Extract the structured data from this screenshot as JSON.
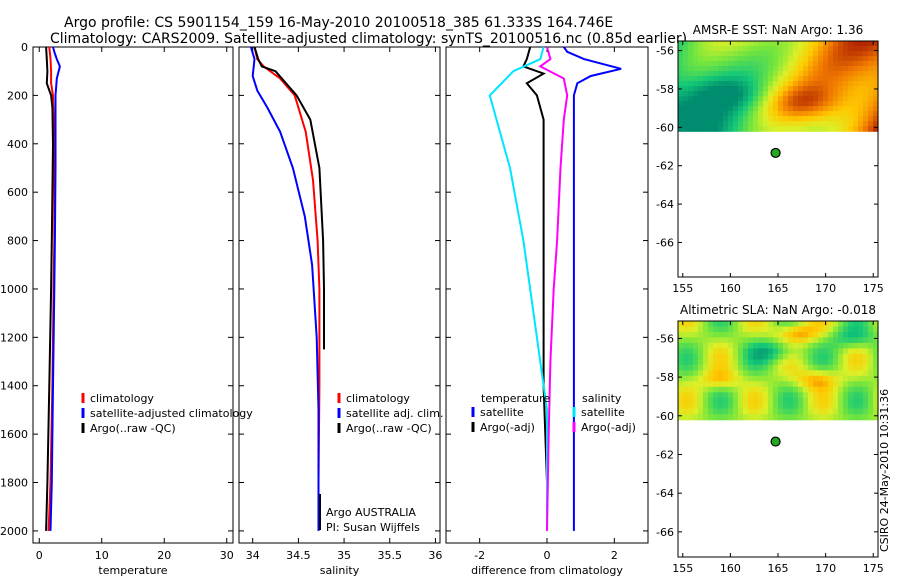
{
  "header": {
    "line1": "Argo profile: CS 5901154_159 16-May-2010 20100518_385 61.333S 164.746E",
    "line2": "Climatology: CARS2009. Satellite-adjusted climatology: synTS_20100516.nc (0.85d earlier)"
  },
  "side_label": "CSIRO 24-May-2010 10:31:36",
  "colors": {
    "climatology": "#ff0000",
    "satellite": "#0000ff",
    "argo": "#000000",
    "salinity_sat": "#00e5ff",
    "salinity_argo": "#ff00ff"
  },
  "chart_data": [
    {
      "type": "line",
      "xlabel": "temperature",
      "xlim": [
        -1,
        31
      ],
      "xticks": [
        0,
        10,
        20,
        30
      ],
      "ylim": [
        0,
        2050
      ],
      "yticks": [
        0,
        200,
        400,
        600,
        800,
        1000,
        1200,
        1400,
        1600,
        1800,
        2000
      ],
      "y_inverted": true,
      "legend": {
        "position": "lower-right",
        "entries": [
          "climatology",
          "satellite-adjusted climatology",
          "Argo(..raw -QC)"
        ]
      },
      "series": [
        {
          "name": "climatology",
          "color": "#ff0000",
          "points": [
            [
              1.6,
              0
            ],
            [
              1.8,
              50
            ],
            [
              1.9,
              100
            ],
            [
              1.9,
              150
            ],
            [
              2.2,
              200
            ],
            [
              2.3,
              300
            ],
            [
              2.4,
              500
            ],
            [
              2.4,
              800
            ],
            [
              2.3,
              1000
            ],
            [
              2.1,
              1400
            ],
            [
              1.8,
              1800
            ],
            [
              1.5,
              2000
            ]
          ]
        },
        {
          "name": "satellite-adjusted climatology",
          "color": "#0000ff",
          "points": [
            [
              2.2,
              0
            ],
            [
              2.4,
              20
            ],
            [
              2.8,
              50
            ],
            [
              3.3,
              80
            ],
            [
              2.8,
              130
            ],
            [
              2.6,
              200
            ],
            [
              2.6,
              300
            ],
            [
              2.6,
              500
            ],
            [
              2.5,
              800
            ],
            [
              2.4,
              1000
            ],
            [
              2.2,
              1400
            ],
            [
              2.0,
              1800
            ],
            [
              1.8,
              2000
            ]
          ]
        },
        {
          "name": "Argo(..raw -QC)",
          "color": "#000000",
          "points": [
            [
              1.1,
              0
            ],
            [
              1.2,
              50
            ],
            [
              1.3,
              100
            ],
            [
              1.2,
              150
            ],
            [
              1.9,
              200
            ],
            [
              2.1,
              250
            ],
            [
              2.2,
              400
            ],
            [
              2.1,
              600
            ],
            [
              2.0,
              800
            ],
            [
              1.9,
              1000
            ],
            [
              1.6,
              1400
            ],
            [
              1.3,
              1800
            ],
            [
              1.1,
              2000
            ]
          ]
        }
      ]
    },
    {
      "type": "line",
      "xlabel": "salinity",
      "xlim": [
        33.85,
        36.05
      ],
      "xticks": [
        34,
        34.5,
        35,
        35.5,
        36
      ],
      "ylim": [
        0,
        2050
      ],
      "yticks": [
        0,
        200,
        400,
        600,
        800,
        1000,
        1200,
        1400,
        1600,
        1800,
        2000
      ],
      "y_inverted": true,
      "legend": {
        "position": "lower-right",
        "entries": [
          "climatology",
          "satellite adj. clim.",
          "Argo(..raw -QC)"
        ]
      },
      "annotations": [
        "Argo AUSTRALIA",
        "PI: Susan Wijffels"
      ],
      "series": [
        {
          "name": "climatology",
          "color": "#ff0000",
          "points": [
            [
              34.02,
              0
            ],
            [
              34.05,
              50
            ],
            [
              34.12,
              80
            ],
            [
              34.3,
              130
            ],
            [
              34.46,
              200
            ],
            [
              34.58,
              350
            ],
            [
              34.66,
              550
            ],
            [
              34.71,
              800
            ],
            [
              34.73,
              1000
            ],
            [
              34.73,
              1400
            ],
            [
              34.72,
              1800
            ],
            [
              34.72,
              2000
            ]
          ]
        },
        {
          "name": "satellite adj. clim.",
          "color": "#0000ff",
          "points": [
            [
              33.98,
              0
            ],
            [
              34.02,
              50
            ],
            [
              34.0,
              120
            ],
            [
              34.05,
              180
            ],
            [
              34.16,
              250
            ],
            [
              34.3,
              350
            ],
            [
              34.44,
              500
            ],
            [
              34.57,
              700
            ],
            [
              34.65,
              900
            ],
            [
              34.7,
              1200
            ],
            [
              34.72,
              1500
            ],
            [
              34.72,
              1800
            ],
            [
              34.72,
              2000
            ]
          ]
        },
        {
          "name": "Argo(..raw -QC)",
          "color": "#000000",
          "points": [
            [
              34.02,
              0
            ],
            [
              34.06,
              50
            ],
            [
              34.1,
              80
            ],
            [
              34.25,
              100
            ],
            [
              34.48,
              200
            ],
            [
              34.63,
              300
            ],
            [
              34.73,
              500
            ],
            [
              34.77,
              800
            ],
            [
              34.78,
              1000
            ],
            [
              34.78,
              1250
            ]
          ]
        }
      ]
    },
    {
      "type": "line",
      "xlabel": "difference from climatology",
      "xlim": [
        -3,
        3
      ],
      "xticks": [
        -2,
        0,
        2
      ],
      "ylim": [
        0,
        2050
      ],
      "yticks": [
        0,
        200,
        400,
        600,
        800,
        1000,
        1200,
        1400,
        1600,
        1800,
        2000
      ],
      "y_inverted": true,
      "legend": {
        "position": "lower-right",
        "groups": [
          {
            "title": "temperature",
            "entries": [
              "satellite",
              "Argo(-adj)"
            ]
          },
          {
            "title": "salinity",
            "entries": [
              "satellite",
              "Argo(-adj)"
            ]
          }
        ]
      },
      "series": [
        {
          "name": "temperature satellite",
          "color": "#0000ff",
          "points": [
            [
              0.5,
              0
            ],
            [
              0.6,
              20
            ],
            [
              1.1,
              50
            ],
            [
              2.2,
              90
            ],
            [
              1.3,
              120
            ],
            [
              0.9,
              150
            ],
            [
              0.8,
              200
            ],
            [
              0.8,
              300
            ],
            [
              0.8,
              500
            ],
            [
              0.8,
              800
            ],
            [
              0.8,
              1000
            ],
            [
              0.8,
              1400
            ],
            [
              0.8,
              1800
            ],
            [
              0.8,
              2000
            ]
          ]
        },
        {
          "name": "temperature Argo(-adj)",
          "color": "#000000",
          "points": [
            [
              -0.5,
              0
            ],
            [
              -0.6,
              50
            ],
            [
              -0.7,
              80
            ],
            [
              -0.1,
              110
            ],
            [
              -0.6,
              150
            ],
            [
              -0.3,
              200
            ],
            [
              -0.1,
              300
            ],
            [
              -0.1,
              600
            ],
            [
              -0.1,
              1000
            ],
            [
              -0.1,
              1400
            ],
            [
              0.0,
              1800
            ],
            [
              0.0,
              2000
            ]
          ]
        },
        {
          "name": "salinity satellite",
          "color": "#00e5ff",
          "points": [
            [
              -0.1,
              0
            ],
            [
              -0.2,
              50
            ],
            [
              -1.0,
              100
            ],
            [
              -1.7,
              200
            ],
            [
              -1.5,
              300
            ],
            [
              -1.1,
              500
            ],
            [
              -0.7,
              800
            ],
            [
              -0.3,
              1200
            ],
            [
              0.0,
              1500
            ],
            [
              0.0,
              2000
            ]
          ]
        },
        {
          "name": "salinity Argo(-adj)",
          "color": "#ff00ff",
          "points": [
            [
              0.0,
              0
            ],
            [
              0.1,
              50
            ],
            [
              -0.2,
              80
            ],
            [
              0.5,
              130
            ],
            [
              0.6,
              200
            ],
            [
              0.5,
              300
            ],
            [
              0.4,
              500
            ],
            [
              0.3,
              800
            ],
            [
              0.2,
              1000
            ],
            [
              0.1,
              1300
            ],
            [
              0.05,
              1600
            ],
            [
              0.0,
              2000
            ]
          ]
        }
      ]
    },
    {
      "type": "heatmap",
      "title": "AMSR-E SST: NaN Argo: 1.36",
      "xlim": [
        154.5,
        175.5
      ],
      "xticks": [
        155,
        160,
        165,
        170,
        175
      ],
      "ylim": [
        -67.8,
        -55.5
      ],
      "yticks": [
        -56,
        -58,
        -60,
        -62,
        -64,
        -66
      ],
      "data_extent_lat": [
        -55.5,
        -60.2
      ],
      "argo_position": {
        "lon": 164.746,
        "lat": -61.333
      }
    },
    {
      "type": "heatmap",
      "title": "Altimetric SLA: NaN Argo: -0.018",
      "xlim": [
        154.5,
        175.5
      ],
      "xticks": [
        155,
        160,
        165,
        170,
        175
      ],
      "ylim": [
        -67.3,
        -55.1
      ],
      "yticks": [
        -56,
        -58,
        -60,
        -62,
        -64,
        -66
      ],
      "data_extent_lat": [
        -55.1,
        -60.2
      ],
      "argo_position": {
        "lon": 164.746,
        "lat": -61.333
      }
    }
  ]
}
